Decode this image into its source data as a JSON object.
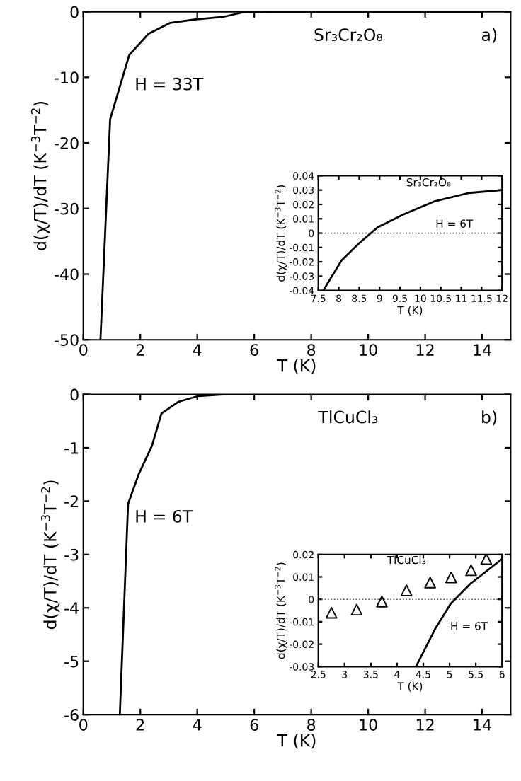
{
  "chart_data": [
    {
      "type": "line",
      "xlabel": "T (K)",
      "ylabel": "d(χ/T)/dT (K$^{−3}$T$^{−2}$)",
      "annotations": [
        "Sr₃Cr₂O₈",
        "a)",
        "H = 33T"
      ],
      "xlim": [
        0,
        15
      ],
      "xticks": [
        0,
        2,
        4,
        6,
        8,
        10,
        12,
        14
      ],
      "ylim": [
        -50,
        0
      ],
      "yticks": [
        -50,
        -40,
        -30,
        -20,
        -10,
        0
      ],
      "series": [
        {
          "color": "#000000",
          "x": [
            0.6,
            0.94,
            1.61,
            2.28,
            3.05,
            3.9,
            4.9,
            5.6,
            6.5,
            14
          ],
          "values": [
            -50,
            -16.4,
            -6.6,
            -3.4,
            -1.7,
            -1.2,
            -0.8,
            -0.1,
            0,
            0
          ]
        }
      ]
    },
    {
      "type": "line",
      "xlabel": "T (K)",
      "ylabel": "d(χ/T)/dT (K$^{−3}$T$^{−2}$)",
      "annotations": [
        "Sr₃Cr₂O₈",
        "H = 6T"
      ],
      "xlim": [
        7.5,
        12
      ],
      "xticks": [
        7.5,
        8,
        8.5,
        9,
        9.5,
        10,
        10.5,
        11,
        11.5,
        12
      ],
      "ylim": [
        -0.04,
        0.04
      ],
      "yticks": [
        -0.04,
        -0.03,
        -0.02,
        -0.01,
        0,
        0.01,
        0.02,
        0.03,
        0.04
      ],
      "ref_lines": [
        {
          "axis": "y",
          "value": 0,
          "color": "#555555",
          "line_style": "dotted"
        }
      ],
      "series": [
        {
          "color": "#000000",
          "x": [
            7.62,
            8.07,
            8.5,
            8.95,
            9.58,
            10.33,
            11.19,
            12
          ],
          "values": [
            -0.04,
            -0.019,
            -0.007,
            0.004,
            0.013,
            0.022,
            0.028,
            0.03
          ]
        }
      ]
    },
    {
      "type": "line",
      "xlabel": "T (K)",
      "ylabel": "d(χ/T)/dT (K$^{−3}$T$^{−2}$)",
      "annotations": [
        "TlCuCl₃",
        "b)",
        "H = 6T"
      ],
      "xlim": [
        0,
        15
      ],
      "xticks": [
        0,
        2,
        4,
        6,
        8,
        10,
        12,
        14
      ],
      "ylim": [
        -6,
        0
      ],
      "yticks": [
        -6,
        -5,
        -4,
        -3,
        -2,
        -1,
        0
      ],
      "series": [
        {
          "color": "#000000",
          "x": [
            1.28,
            1.57,
            1.94,
            2.41,
            2.74,
            3.33,
            4.04,
            4.9,
            14
          ],
          "values": [
            -6,
            -2.05,
            -1.5,
            -0.96,
            -0.36,
            -0.14,
            -0.03,
            0,
            0
          ]
        }
      ]
    },
    {
      "type": "line",
      "xlabel": "T (K)",
      "ylabel": "d(χ/T)/dT (K$^{−3}$T$^{−2}$)",
      "annotations": [
        "TlCuCl₃",
        "H = 6T"
      ],
      "xlim": [
        2.5,
        6
      ],
      "xticks": [
        2.5,
        3,
        3.5,
        4,
        4.5,
        5,
        5.5,
        6
      ],
      "ylim": [
        -0.03,
        0.02
      ],
      "yticks": [
        -0.03,
        -0.02,
        -0.01,
        0,
        0.01,
        0.02
      ],
      "ref_lines": [
        {
          "axis": "y",
          "value": 0,
          "color": "#555555",
          "line_style": "dotted"
        }
      ],
      "series": [
        {
          "type": "scatter",
          "marker": "triangle",
          "color": "#000000",
          "x": [
            2.75,
            3.23,
            3.71,
            4.18,
            4.63,
            5.03,
            5.41,
            5.7
          ],
          "values": [
            -0.006,
            -0.0046,
            -0.001,
            0.004,
            0.0075,
            0.0098,
            0.013,
            0.018
          ]
        },
        {
          "color": "#000000",
          "x": [
            4.36,
            4.73,
            5.02,
            5.4,
            6
          ],
          "values": [
            -0.03,
            -0.013,
            -0.002,
            0.007,
            0.018
          ]
        }
      ]
    }
  ]
}
